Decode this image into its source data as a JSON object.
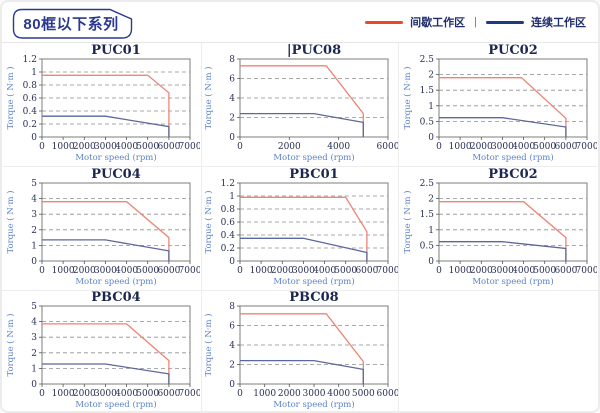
{
  "header": {
    "badge": "80框以下系列",
    "legend": {
      "intermittent": "间歇工作区",
      "separator": "|",
      "continuous": "连续工作区"
    }
  },
  "colors": {
    "accent_navy": "#2b3990",
    "legend_red": "#e8482b",
    "legend_blue": "#1f3a7e",
    "curve_red": "#ec8576",
    "curve_blue": "#5a689a",
    "grid_gray": "#8f8f8f",
    "frame_gray": "#7d7d7d",
    "axis_label_blue": "#5b83c9",
    "tick_text": "#2a3055"
  },
  "chart_data": [
    {
      "type": "line",
      "title": "PUC01",
      "caret": "",
      "xlabel": "Motor speed (rpm)",
      "ylabel": "Torque ( N·m )",
      "xlim": [
        0,
        7000
      ],
      "xticks": [
        0,
        1000,
        2000,
        3000,
        4000,
        5000,
        6000,
        7000
      ],
      "yticks": [
        0,
        0.2,
        0.4,
        0.6,
        0.8,
        1,
        1.2
      ],
      "series": [
        {
          "name": "间歇工作区",
          "color_key": "curve_red",
          "points": [
            [
              0,
              0.95
            ],
            [
              5000,
              0.95
            ],
            [
              6000,
              0.68
            ],
            [
              6000,
              0
            ]
          ]
        },
        {
          "name": "连续工作区",
          "color_key": "curve_blue",
          "points": [
            [
              0,
              0.32
            ],
            [
              3000,
              0.32
            ],
            [
              6000,
              0.16
            ],
            [
              6000,
              0
            ]
          ]
        }
      ]
    },
    {
      "type": "line",
      "title": "PUC08",
      "caret": "|",
      "xlabel": "Motor speed (rpm)",
      "ylabel": "Torque ( N·m )",
      "xlim": [
        0,
        6000
      ],
      "xticks": [
        0,
        2000,
        4000,
        6000
      ],
      "yticks": [
        0,
        2,
        4,
        6,
        8
      ],
      "series": [
        {
          "name": "间歇工作区",
          "color_key": "curve_red",
          "points": [
            [
              0,
              7.3
            ],
            [
              3500,
              7.3
            ],
            [
              5000,
              2.4
            ],
            [
              5000,
              0
            ]
          ]
        },
        {
          "name": "连续工作区",
          "color_key": "curve_blue",
          "points": [
            [
              0,
              2.4
            ],
            [
              3000,
              2.4
            ],
            [
              5000,
              1.5
            ],
            [
              5000,
              0
            ]
          ]
        }
      ]
    },
    {
      "type": "line",
      "title": "PUC02",
      "caret": "",
      "xlabel": "Motor speed (rpm)",
      "ylabel": "Torque ( N·m )",
      "xlim": [
        0,
        7000
      ],
      "xticks": [
        0,
        1000,
        2000,
        3000,
        4000,
        5000,
        6000,
        7000
      ],
      "yticks": [
        0,
        0.5,
        1,
        1.5,
        2,
        2.5
      ],
      "series": [
        {
          "name": "间歇工作区",
          "color_key": "curve_red",
          "points": [
            [
              0,
              1.9
            ],
            [
              3900,
              1.9
            ],
            [
              6000,
              0.6
            ],
            [
              6000,
              0
            ]
          ]
        },
        {
          "name": "连续工作区",
          "color_key": "curve_blue",
          "points": [
            [
              0,
              0.62
            ],
            [
              3000,
              0.62
            ],
            [
              6000,
              0.32
            ],
            [
              6000,
              0
            ]
          ]
        }
      ]
    },
    {
      "type": "line",
      "title": "PUC04",
      "caret": "",
      "xlabel": "Motor speed (rpm)",
      "ylabel": "Torque ( N·m )",
      "xlim": [
        0,
        7000
      ],
      "xticks": [
        0,
        1000,
        2000,
        3000,
        4000,
        5000,
        6000,
        7000
      ],
      "yticks": [
        0,
        1,
        2,
        3,
        4,
        5
      ],
      "series": [
        {
          "name": "间歇工作区",
          "color_key": "curve_red",
          "points": [
            [
              0,
              3.8
            ],
            [
              4000,
              3.8
            ],
            [
              6000,
              1.5
            ],
            [
              6000,
              0
            ]
          ]
        },
        {
          "name": "连续工作区",
          "color_key": "curve_blue",
          "points": [
            [
              0,
              1.35
            ],
            [
              3000,
              1.35
            ],
            [
              6000,
              0.65
            ],
            [
              6000,
              0
            ]
          ]
        }
      ]
    },
    {
      "type": "line",
      "title": "PBC01",
      "caret": "",
      "xlabel": "Motor speed (rpm)",
      "ylabel": "Torque ( N·m )",
      "xlim": [
        0,
        7000
      ],
      "xticks": [
        0,
        1000,
        2000,
        3000,
        4000,
        5000,
        6000,
        7000
      ],
      "yticks": [
        0,
        0.2,
        0.4,
        0.6,
        0.8,
        1,
        1.2
      ],
      "series": [
        {
          "name": "间歇工作区",
          "color_key": "curve_red",
          "points": [
            [
              0,
              0.98
            ],
            [
              5000,
              0.98
            ],
            [
              6000,
              0.45
            ],
            [
              6000,
              0
            ]
          ]
        },
        {
          "name": "连续工作区",
          "color_key": "curve_blue",
          "points": [
            [
              0,
              0.35
            ],
            [
              3000,
              0.35
            ],
            [
              6000,
              0.13
            ],
            [
              6000,
              0
            ]
          ]
        }
      ]
    },
    {
      "type": "line",
      "title": "PBC02",
      "caret": "",
      "xlabel": "Motor speed (rpm)",
      "ylabel": "Torque ( N·m )",
      "xlim": [
        0,
        7000
      ],
      "xticks": [
        0,
        1000,
        2000,
        3000,
        4000,
        5000,
        6000,
        7000
      ],
      "yticks": [
        0,
        0.5,
        1,
        1.5,
        2,
        2.5
      ],
      "series": [
        {
          "name": "间歇工作区",
          "color_key": "curve_red",
          "points": [
            [
              0,
              1.9
            ],
            [
              4000,
              1.9
            ],
            [
              6000,
              0.75
            ],
            [
              6000,
              0
            ]
          ]
        },
        {
          "name": "连续工作区",
          "color_key": "curve_blue",
          "points": [
            [
              0,
              0.62
            ],
            [
              3000,
              0.62
            ],
            [
              6000,
              0.4
            ],
            [
              6000,
              0
            ]
          ]
        }
      ]
    },
    {
      "type": "line",
      "title": "PBC04",
      "caret": "",
      "xlabel": "Motor speed (rpm)",
      "ylabel": "Torque ( N·m )",
      "xlim": [
        0,
        7000
      ],
      "xticks": [
        0,
        1000,
        2000,
        3000,
        4000,
        5000,
        6000,
        7000
      ],
      "yticks": [
        0,
        1,
        2,
        3,
        4,
        5
      ],
      "series": [
        {
          "name": "间歇工作区",
          "color_key": "curve_red",
          "points": [
            [
              0,
              3.85
            ],
            [
              4000,
              3.85
            ],
            [
              6000,
              1.5
            ],
            [
              6000,
              0
            ]
          ]
        },
        {
          "name": "连续工作区",
          "color_key": "curve_blue",
          "points": [
            [
              0,
              1.28
            ],
            [
              3000,
              1.28
            ],
            [
              6000,
              0.65
            ],
            [
              6000,
              0
            ]
          ]
        }
      ]
    },
    {
      "type": "line",
      "title": "PBC08",
      "caret": "",
      "xlabel": "Motor speed (rpm)",
      "ylabel": "Torque ( N·m )",
      "xlim": [
        0,
        6000
      ],
      "xticks": [
        0,
        1000,
        2000,
        3000,
        4000,
        5000,
        6000
      ],
      "yticks": [
        0,
        2,
        4,
        6,
        8
      ],
      "series": [
        {
          "name": "间歇工作区",
          "color_key": "curve_red",
          "points": [
            [
              0,
              7.2
            ],
            [
              3500,
              7.2
            ],
            [
              5000,
              2.3
            ],
            [
              5000,
              0
            ]
          ]
        },
        {
          "name": "连续工作区",
          "color_key": "curve_blue",
          "points": [
            [
              0,
              2.4
            ],
            [
              3000,
              2.4
            ],
            [
              5000,
              1.5
            ],
            [
              5000,
              0
            ]
          ]
        }
      ]
    }
  ]
}
